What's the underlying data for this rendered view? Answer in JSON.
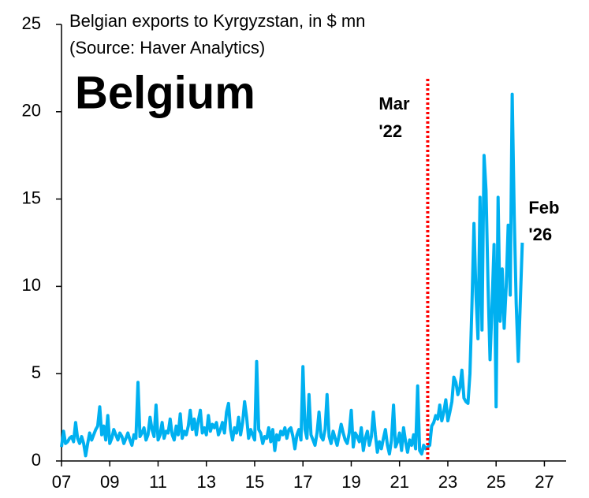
{
  "chart_data": {
    "type": "line",
    "title": "Belgian exports to Kyrgyzstan, in $ mn",
    "subtitle": "(Source: Haver Analytics)",
    "label": "Belgium",
    "annotations": [
      {
        "x": "2022-03",
        "lines": [
          "Mar",
          "'22"
        ],
        "color": "#ff0000"
      },
      {
        "x": "2026-02",
        "lines": [
          "Feb",
          "'26"
        ],
        "color": "#00b0f0"
      }
    ],
    "x": [
      "2007-01",
      "2007-02",
      "2007-03",
      "2007-04",
      "2007-05",
      "2007-06",
      "2007-07",
      "2007-08",
      "2007-09",
      "2007-10",
      "2007-11",
      "2007-12",
      "2008-01",
      "2008-02",
      "2008-03",
      "2008-04",
      "2008-05",
      "2008-06",
      "2008-07",
      "2008-08",
      "2008-09",
      "2008-10",
      "2008-11",
      "2008-12",
      "2009-01",
      "2009-02",
      "2009-03",
      "2009-04",
      "2009-05",
      "2009-06",
      "2009-07",
      "2009-08",
      "2009-09",
      "2009-10",
      "2009-11",
      "2009-12",
      "2010-01",
      "2010-02",
      "2010-03",
      "2010-04",
      "2010-05",
      "2010-06",
      "2010-07",
      "2010-08",
      "2010-09",
      "2010-10",
      "2010-11",
      "2010-12",
      "2011-01",
      "2011-02",
      "2011-03",
      "2011-04",
      "2011-05",
      "2011-06",
      "2011-07",
      "2011-08",
      "2011-09",
      "2011-10",
      "2011-11",
      "2011-12",
      "2012-01",
      "2012-02",
      "2012-03",
      "2012-04",
      "2012-05",
      "2012-06",
      "2012-07",
      "2012-08",
      "2012-09",
      "2012-10",
      "2012-11",
      "2012-12",
      "2013-01",
      "2013-02",
      "2013-03",
      "2013-04",
      "2013-05",
      "2013-06",
      "2013-07",
      "2013-08",
      "2013-09",
      "2013-10",
      "2013-11",
      "2013-12",
      "2014-01",
      "2014-02",
      "2014-03",
      "2014-04",
      "2014-05",
      "2014-06",
      "2014-07",
      "2014-08",
      "2014-09",
      "2014-10",
      "2014-11",
      "2014-12",
      "2015-01",
      "2015-02",
      "2015-03",
      "2015-04",
      "2015-05",
      "2015-06",
      "2015-07",
      "2015-08",
      "2015-09",
      "2015-10",
      "2015-11",
      "2015-12",
      "2016-01",
      "2016-02",
      "2016-03",
      "2016-04",
      "2016-05",
      "2016-06",
      "2016-07",
      "2016-08",
      "2016-09",
      "2016-10",
      "2016-11",
      "2016-12",
      "2017-01",
      "2017-02",
      "2017-03",
      "2017-04",
      "2017-05",
      "2017-06",
      "2017-07",
      "2017-08",
      "2017-09",
      "2017-10",
      "2017-11",
      "2017-12",
      "2018-01",
      "2018-02",
      "2018-03",
      "2018-04",
      "2018-05",
      "2018-06",
      "2018-07",
      "2018-08",
      "2018-09",
      "2018-10",
      "2018-11",
      "2018-12",
      "2019-01",
      "2019-02",
      "2019-03",
      "2019-04",
      "2019-05",
      "2019-06",
      "2019-07",
      "2019-08",
      "2019-09",
      "2019-10",
      "2019-11",
      "2019-12",
      "2020-01",
      "2020-02",
      "2020-03",
      "2020-04",
      "2020-05",
      "2020-06",
      "2020-07",
      "2020-08",
      "2020-09",
      "2020-10",
      "2020-11",
      "2020-12",
      "2021-01",
      "2021-02",
      "2021-03",
      "2021-04",
      "2021-05",
      "2021-06",
      "2021-07",
      "2021-08",
      "2021-09",
      "2021-10",
      "2021-11",
      "2021-12",
      "2022-01",
      "2022-02",
      "2022-03",
      "2022-04",
      "2022-05",
      "2022-06",
      "2022-07",
      "2022-08",
      "2022-09",
      "2022-10",
      "2022-11",
      "2022-12",
      "2023-01",
      "2023-02",
      "2023-03",
      "2023-04",
      "2023-05",
      "2023-06",
      "2023-07",
      "2023-08",
      "2023-09",
      "2023-10",
      "2023-11",
      "2023-12",
      "2024-01",
      "2024-02",
      "2024-03",
      "2024-04",
      "2024-05",
      "2024-06",
      "2024-07",
      "2024-08",
      "2024-09",
      "2024-10",
      "2024-11",
      "2024-12",
      "2025-01",
      "2025-02",
      "2025-03",
      "2025-04",
      "2025-05",
      "2025-06",
      "2025-07",
      "2025-08",
      "2025-09",
      "2025-10",
      "2025-11",
      "2025-12",
      "2026-01",
      "2026-02"
    ],
    "series": [
      {
        "name": "Belgian exports to Kyrgyzstan",
        "color": "#00b0f0",
        "values": [
          0.8,
          1.7,
          1.0,
          1.1,
          1.3,
          1.4,
          1.1,
          2.2,
          1.3,
          1.0,
          1.4,
          1.0,
          0.3,
          1.0,
          1.6,
          1.2,
          1.5,
          1.8,
          2.0,
          3.1,
          1.5,
          2.0,
          1.2,
          2.6,
          1.0,
          1.3,
          1.8,
          1.5,
          1.2,
          1.6,
          1.4,
          1.0,
          1.3,
          1.6,
          1.2,
          0.9,
          1.5,
          1.3,
          4.5,
          1.4,
          1.6,
          1.9,
          1.2,
          1.5,
          2.5,
          1.8,
          1.4,
          3.2,
          1.2,
          1.5,
          2.2,
          1.3,
          1.7,
          1.6,
          2.4,
          1.5,
          1.2,
          2.0,
          1.5,
          2.7,
          1.3,
          1.7,
          1.5,
          2.0,
          2.9,
          1.8,
          2.4,
          1.5,
          2.3,
          2.9,
          1.6,
          1.9,
          1.5,
          2.6,
          1.7,
          2.1,
          1.9,
          2.2,
          1.5,
          1.8,
          2.2,
          1.6,
          2.8,
          3.3,
          1.8,
          1.2,
          1.9,
          1.6,
          2.5,
          1.5,
          2.2,
          3.4,
          2.5,
          1.3,
          1.8,
          1.5,
          1.2,
          5.7,
          1.8,
          1.6,
          1.0,
          1.4,
          1.3,
          1.9,
          1.1,
          1.8,
          0.6,
          1.5,
          1.2,
          1.7,
          1.5,
          1.9,
          1.3,
          1.8,
          1.9,
          1.4,
          0.7,
          1.5,
          1.8,
          1.2,
          5.4,
          1.8,
          1.3,
          3.8,
          1.5,
          1.2,
          0.9,
          1.6,
          2.8,
          1.4,
          1.2,
          1.8,
          3.8,
          1.4,
          1.0,
          1.7,
          1.3,
          0.9,
          1.5,
          2.1,
          1.6,
          1.2,
          1.0,
          1.6,
          2.9,
          0.8,
          1.6,
          1.4,
          1.1,
          1.9,
          0.6,
          1.3,
          1.7,
          0.9,
          1.4,
          2.8,
          1.5,
          0.5,
          1.1,
          0.7,
          1.3,
          1.8,
          0.9,
          0.4,
          1.2,
          3.2,
          0.8,
          1.1,
          1.6,
          0.6,
          1.9,
          1.1,
          0.5,
          1.2,
          0.9,
          1.5,
          0.7,
          4.3,
          0.6,
          0.4,
          0.9,
          0.7,
          0.8,
          0.9,
          2.0,
          2.2,
          2.6,
          2.4,
          3.2,
          2.3,
          2.8,
          3.5,
          2.3,
          2.8,
          3.4,
          4.8,
          4.5,
          3.8,
          4.2,
          5.2,
          3.6,
          3.4,
          3.3,
          5.0,
          9.0,
          13.6,
          9.5,
          7.0,
          15.1,
          7.5,
          17.5,
          15.5,
          10.0,
          5.8,
          9.0,
          12.4,
          3.1,
          15.1,
          8.0,
          11.0,
          7.6,
          10.0,
          13.5,
          9.5,
          21.0,
          14.0,
          9.0,
          5.7,
          9.0,
          12.5
        ]
      }
    ],
    "xlim": [
      2007,
      2027.9
    ],
    "xticks": [
      {
        "value": 2007,
        "label": "07"
      },
      {
        "value": 2009,
        "label": "09"
      },
      {
        "value": 2011,
        "label": "11"
      },
      {
        "value": 2013,
        "label": "13"
      },
      {
        "value": 2015,
        "label": "15"
      },
      {
        "value": 2017,
        "label": "17"
      },
      {
        "value": 2019,
        "label": "19"
      },
      {
        "value": 2021,
        "label": "21"
      },
      {
        "value": 2023,
        "label": "23"
      },
      {
        "value": 2025,
        "label": "25"
      },
      {
        "value": 2027,
        "label": "27"
      }
    ],
    "ylim": [
      0,
      25
    ],
    "yticks": [
      0,
      5,
      10,
      15,
      20,
      25
    ],
    "grid": false
  }
}
